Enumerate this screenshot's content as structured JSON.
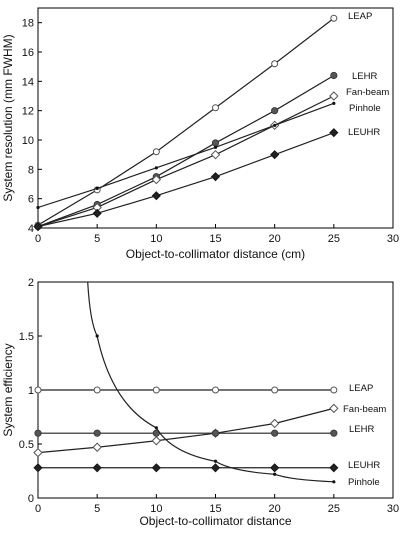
{
  "chart_data": [
    {
      "type": "line",
      "xlabel": "Object-to-collimator distance (cm)",
      "ylabel": "System resolution (mm FWHM)",
      "xlim": [
        0,
        30
      ],
      "ylim": [
        4,
        19
      ],
      "xticks": [
        0,
        5,
        10,
        15,
        20,
        25,
        30
      ],
      "yticks": [
        4,
        6,
        8,
        10,
        12,
        14,
        16,
        18
      ],
      "grid": false,
      "series": [
        {
          "name": "LEAP",
          "marker": "open-circle",
          "x": [
            0,
            5,
            10,
            15,
            20,
            25
          ],
          "y": [
            4.2,
            6.6,
            9.2,
            12.2,
            15.2,
            18.3
          ]
        },
        {
          "name": "LEHR",
          "marker": "filled-circle",
          "x": [
            0,
            5,
            10,
            15,
            20,
            25
          ],
          "y": [
            4.1,
            5.6,
            7.5,
            9.8,
            12.0,
            14.4
          ]
        },
        {
          "name": "Fan-beam",
          "marker": "open-diamond",
          "x": [
            0,
            5,
            10,
            15,
            20,
            25
          ],
          "y": [
            4.1,
            5.4,
            7.3,
            9.0,
            11.0,
            13.0
          ]
        },
        {
          "name": "Pinhole",
          "marker": "small-dot",
          "x": [
            0,
            5,
            10,
            15,
            20,
            25
          ],
          "y": [
            5.4,
            6.7,
            8.1,
            9.5,
            11.0,
            12.5
          ]
        },
        {
          "name": "LEUHR",
          "marker": "filled-diamond",
          "x": [
            0,
            5,
            10,
            15,
            20,
            25
          ],
          "y": [
            4.1,
            5.0,
            6.2,
            7.5,
            9.0,
            10.5
          ]
        }
      ]
    },
    {
      "type": "line",
      "xlabel": "Object-to-collimator distance",
      "ylabel": "System efficiency",
      "xlim": [
        0,
        30
      ],
      "ylim": [
        0,
        2
      ],
      "xticks": [
        0,
        5,
        10,
        15,
        20,
        25,
        30
      ],
      "yticks": [
        0,
        0.5,
        1,
        1.5,
        2
      ],
      "grid": false,
      "series": [
        {
          "name": "LEAP",
          "marker": "open-circle",
          "x": [
            0,
            5,
            10,
            15,
            20,
            25
          ],
          "y": [
            1.0,
            1.0,
            1.0,
            1.0,
            1.0,
            1.0
          ]
        },
        {
          "name": "Fan-beam",
          "marker": "open-diamond",
          "x": [
            0,
            5,
            10,
            15,
            20,
            25
          ],
          "y": [
            0.42,
            0.47,
            0.53,
            0.6,
            0.69,
            0.83
          ]
        },
        {
          "name": "LEHR",
          "marker": "filled-circle",
          "x": [
            0,
            5,
            10,
            15,
            20,
            25
          ],
          "y": [
            0.6,
            0.6,
            0.6,
            0.6,
            0.6,
            0.6
          ]
        },
        {
          "name": "LEUHR",
          "marker": "filled-diamond",
          "x": [
            0,
            5,
            10,
            15,
            20,
            25
          ],
          "y": [
            0.28,
            0.28,
            0.28,
            0.28,
            0.28,
            0.28
          ]
        },
        {
          "name": "Pinhole",
          "marker": "small-dot",
          "x": [
            4.2,
            5,
            10,
            15,
            20,
            25
          ],
          "y": [
            2.0,
            1.5,
            0.65,
            0.34,
            0.22,
            0.15
          ]
        }
      ]
    }
  ]
}
